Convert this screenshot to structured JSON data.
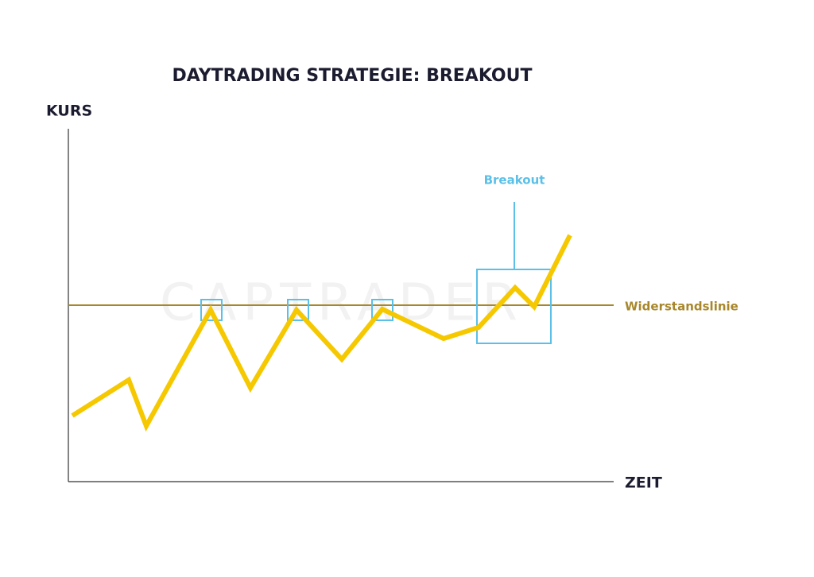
{
  "title": "DAYTRADING STRATEGIE: BREAKOUT",
  "y_axis_label": "KURS",
  "x_axis_label": "ZEIT",
  "resistance_label": "Widerstandslinie",
  "breakout_label": "Breakout",
  "watermark": "CAPTRADER"
}
